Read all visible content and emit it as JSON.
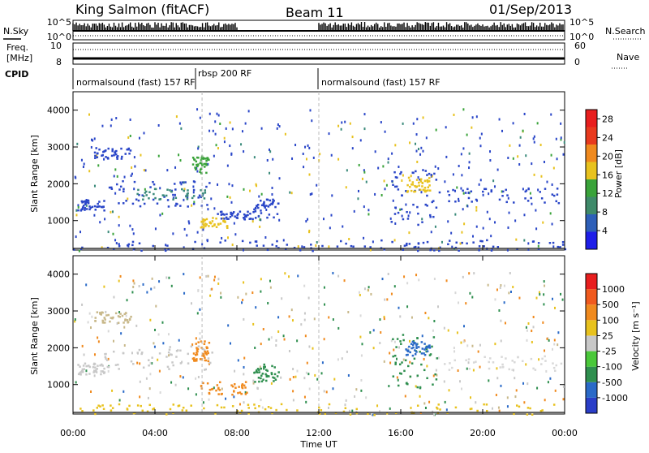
{
  "header": {
    "station": "King Salmon (fitACF)",
    "beam": "Beam 11",
    "date": "01/Sep/2013"
  },
  "noise_panel": {
    "left_label": "N.Sky",
    "right_label": "N.Search",
    "left_ticks": [
      "10^5",
      "10^0"
    ],
    "right_ticks": [
      "10^5",
      "10^0"
    ]
  },
  "freq_panel": {
    "left_label_1": "Freq.",
    "left_label_2": "[MHz]",
    "left_ticks": [
      "10",
      "8"
    ],
    "right_label": "Nave",
    "right_ticks": [
      "60",
      "0"
    ]
  },
  "cpid": {
    "label": "CPID",
    "segments": [
      {
        "text": "normalsound (fast) 157 RF",
        "start_hour": 0,
        "end_hour": 6.3
      },
      {
        "text": "rbsp 200 RF",
        "start_hour": 6.3,
        "end_hour": 12.0
      },
      {
        "text": "normalsound (fast) 157 RF",
        "start_hour": 12.0,
        "end_hour": 24
      }
    ]
  },
  "chart_data": [
    {
      "type": "heatmap",
      "panel": "power",
      "ylabel": "Slant Range [km]",
      "xlabel": "",
      "ylim": [
        200,
        4500
      ],
      "xlim_hours": [
        0,
        24
      ],
      "yticks": [
        1000,
        2000,
        3000,
        4000
      ],
      "colorbar": {
        "label": "Power [dB]",
        "ticks": [
          4,
          8,
          12,
          16,
          20,
          24,
          28
        ],
        "range": [
          0,
          30
        ],
        "colors": [
          "#1e1ee8",
          "#2e5fb8",
          "#3f8a6a",
          "#3aa33a",
          "#e8c21e",
          "#f08a1e",
          "#e83a1e",
          "#e81e1e"
        ]
      },
      "features": [
        {
          "t0": 0.0,
          "t1": 24.0,
          "r0": 200,
          "r1": 500,
          "color": "#2a46c8"
        },
        {
          "t0": 0.2,
          "t1": 1.5,
          "r0": 1300,
          "r1": 1600,
          "color": "#2a46c8"
        },
        {
          "t0": 1.5,
          "t1": 6.8,
          "r0": 1400,
          "r1": 2100,
          "color": "#2a46c8"
        },
        {
          "t0": 3.0,
          "t1": 6.5,
          "r0": 1600,
          "r1": 1900,
          "color": "#3a8a7a"
        },
        {
          "t0": 1.0,
          "t1": 2.8,
          "r0": 2700,
          "r1": 3000,
          "color": "#2a46c8"
        },
        {
          "t0": 5.8,
          "t1": 6.6,
          "r0": 2300,
          "r1": 2800,
          "color": "#3aa33a"
        },
        {
          "t0": 6.2,
          "t1": 7.5,
          "r0": 800,
          "r1": 1100,
          "color": "#e8c21e"
        },
        {
          "t0": 7.0,
          "t1": 8.8,
          "r0": 1050,
          "r1": 1300,
          "color": "#2a46c8"
        },
        {
          "t0": 8.8,
          "t1": 10.0,
          "r0": 1100,
          "r1": 1600,
          "color": "#2a46c8"
        },
        {
          "t0": 15.5,
          "t1": 17.8,
          "r0": 900,
          "r1": 2400,
          "color": "#2a46c8"
        },
        {
          "t0": 16.2,
          "t1": 17.4,
          "r0": 1800,
          "r1": 2200,
          "color": "#e8c21e"
        },
        {
          "t0": 17.8,
          "t1": 23.8,
          "r0": 1500,
          "r1": 1900,
          "color": "#2a46c8"
        }
      ]
    },
    {
      "type": "heatmap",
      "panel": "velocity",
      "ylabel": "Slant Range [km]",
      "xlabel": "Time UT",
      "ylim": [
        200,
        4500
      ],
      "xlim_hours": [
        0,
        24
      ],
      "yticks": [
        1000,
        2000,
        3000,
        4000
      ],
      "xticks": [
        "00:00",
        "04:00",
        "08:00",
        "12:00",
        "16:00",
        "20:00",
        "00:00"
      ],
      "colorbar": {
        "label": "Velocity [m s⁻¹]",
        "ticks": [
          1000,
          500,
          100,
          25,
          -25,
          -100,
          -500,
          -1000
        ],
        "colors": [
          "#2a3ec8",
          "#2a6ac8",
          "#2f8f4f",
          "#4ac83a",
          "#c8c8c8",
          "#e8c21e",
          "#f08a1e",
          "#f05a1e",
          "#e81e1e"
        ]
      },
      "features": [
        {
          "t0": 0.0,
          "t1": 24.0,
          "r0": 200,
          "r1": 500,
          "color": "#e8c21e"
        },
        {
          "t0": 0.2,
          "t1": 1.5,
          "r0": 1300,
          "r1": 1600,
          "color": "#c8c8c8"
        },
        {
          "t0": 1.5,
          "t1": 6.8,
          "r0": 1400,
          "r1": 2100,
          "color": "#c8c8c8"
        },
        {
          "t0": 1.0,
          "t1": 2.8,
          "r0": 2700,
          "r1": 3000,
          "color": "#c8b88a"
        },
        {
          "t0": 5.8,
          "t1": 6.6,
          "r0": 1600,
          "r1": 2200,
          "color": "#f08a1e"
        },
        {
          "t0": 6.2,
          "t1": 8.5,
          "r0": 750,
          "r1": 1100,
          "color": "#f08a1e"
        },
        {
          "t0": 8.8,
          "t1": 10.0,
          "r0": 1100,
          "r1": 1600,
          "color": "#2f8f4f"
        },
        {
          "t0": 15.5,
          "t1": 17.8,
          "r0": 900,
          "r1": 2400,
          "color": "#2f8f4f"
        },
        {
          "t0": 16.2,
          "t1": 17.4,
          "r0": 1800,
          "r1": 2200,
          "color": "#2a6ac8"
        },
        {
          "t0": 17.8,
          "t1": 23.8,
          "r0": 1400,
          "r1": 1800,
          "color": "#d8d8d8"
        }
      ]
    }
  ]
}
